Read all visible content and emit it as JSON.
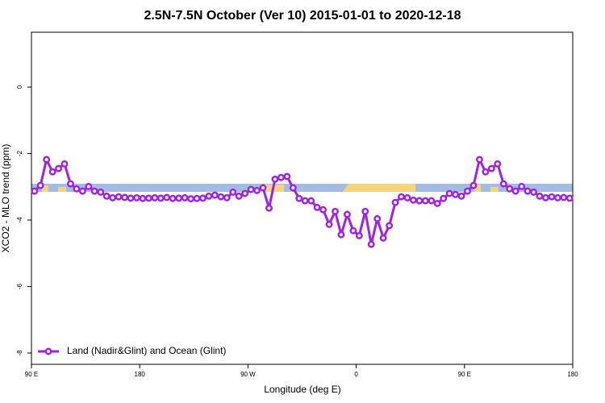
{
  "chart_data": {
    "type": "line",
    "title": "2.5N-7.5N October (Ver 10)   2015-01-01 to 2020-12-18",
    "x_label": "Longitude (deg E)",
    "y_label": "XCO2 - MLO trend (ppm)",
    "x": [
      92.5,
      97.5,
      102.5,
      107.5,
      112.5,
      117.5,
      122.5,
      127.5,
      132.5,
      137.5,
      142.5,
      147.5,
      152.5,
      157.5,
      162.5,
      167.5,
      172.5,
      177.5,
      182.5,
      187.5,
      192.5,
      197.5,
      202.5,
      207.5,
      212.5,
      217.5,
      222.5,
      227.5,
      232.5,
      237.5,
      242.5,
      247.5,
      252.5,
      257.5,
      262.5,
      267.5,
      272.5,
      277.5,
      282.5,
      287.5,
      292.5,
      297.5,
      302.5,
      307.5,
      312.5,
      317.5,
      322.5,
      327.5,
      332.5,
      337.5,
      342.5,
      347.5,
      352.5,
      357.5,
      362.5,
      367.5,
      372.5,
      377.5,
      382.5,
      387.5,
      392.5,
      397.5,
      402.5,
      407.5,
      412.5,
      417.5,
      422.5,
      427.5,
      432.5,
      437.5,
      442.5,
      447.5,
      452.5,
      457.5,
      462.5,
      467.5,
      472.5,
      477.5,
      482.5,
      487.5,
      492.5,
      497.5,
      502.5,
      507.5,
      512.5,
      517.5,
      522.5,
      527.5,
      532.5,
      537.5
    ],
    "series": [
      {
        "name": "Land (Nadir&Glint) and Ocean (Glint)",
        "color": "#a020f0",
        "values": [
          -3.13,
          -2.96,
          -2.18,
          -2.55,
          -2.45,
          -2.31,
          -2.91,
          -3.06,
          -3.13,
          -2.99,
          -3.13,
          -3.16,
          -3.28,
          -3.33,
          -3.3,
          -3.32,
          -3.34,
          -3.33,
          -3.35,
          -3.34,
          -3.33,
          -3.34,
          -3.32,
          -3.35,
          -3.34,
          -3.33,
          -3.36,
          -3.35,
          -3.34,
          -3.28,
          -3.25,
          -3.3,
          -3.33,
          -3.16,
          -3.28,
          -3.2,
          -3.08,
          -3.11,
          -3.03,
          -3.64,
          -2.77,
          -2.72,
          -2.69,
          -3.03,
          -3.35,
          -3.42,
          -3.42,
          -3.62,
          -3.69,
          -4.13,
          -3.74,
          -4.44,
          -3.83,
          -4.32,
          -4.47,
          -3.74,
          -4.73,
          -3.96,
          -4.54,
          -4.17,
          -3.47,
          -3.3,
          -3.33,
          -3.4,
          -3.42,
          -3.42,
          -3.42,
          -3.5,
          -3.35,
          -3.2,
          -3.23,
          -3.28,
          -3.13,
          -2.96,
          -2.18,
          -2.55,
          -2.45,
          -2.31,
          -2.91,
          -3.06,
          -3.13,
          -2.99,
          -3.13,
          -3.16,
          -3.28,
          -3.33,
          -3.3,
          -3.33,
          -3.32,
          -3.34
        ]
      }
    ],
    "xlim": [
      90,
      540
    ],
    "xticks": [
      {
        "value": 90,
        "label": "90 E"
      },
      180,
      {
        "value": 270,
        "label": "90 W"
      },
      {
        "value": 360,
        "label": "0"
      },
      {
        "value": 450,
        "label": "90 E"
      },
      {
        "value": 540,
        "label": "180"
      }
    ],
    "ylim": [
      -8.34,
      1.65
    ],
    "yticks": [
      0,
      -2,
      -4,
      -6,
      -8
    ],
    "legend": "bottom-left"
  }
}
